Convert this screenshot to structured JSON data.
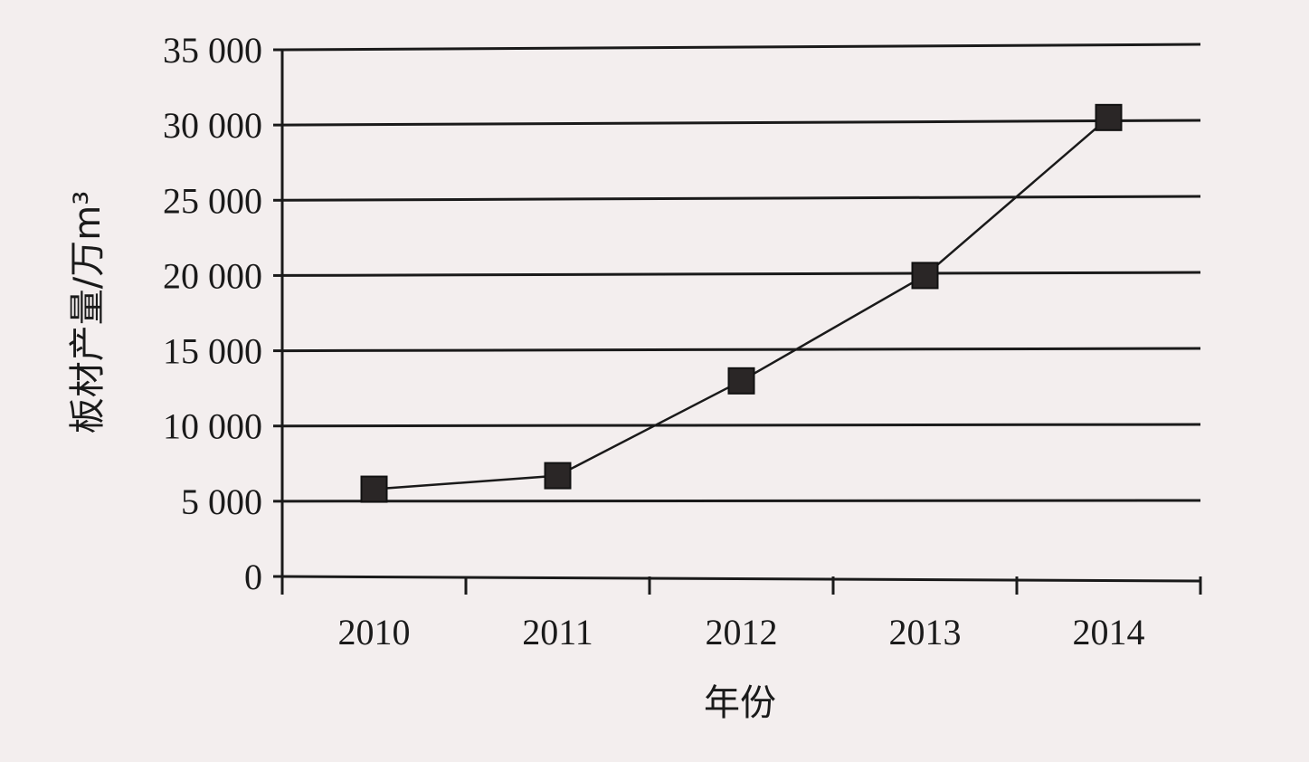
{
  "chart_data": {
    "type": "line",
    "title": "",
    "xlabel": "年份",
    "ylabel": "板材产量/万m³",
    "categories": [
      "2010",
      "2011",
      "2012",
      "2013",
      "2014"
    ],
    "series": [
      {
        "values": [
          5800,
          6700,
          13000,
          20000,
          30500
        ]
      }
    ],
    "ylim": [
      0,
      35000
    ],
    "yticks": [
      0,
      5000,
      10000,
      15000,
      20000,
      25000,
      30000,
      35000
    ],
    "ytick_labels": [
      "0",
      "5 000",
      "10 000",
      "15 000",
      "20 000",
      "25 000",
      "30 000",
      "35 000"
    ],
    "grid": "horizontal",
    "marker": "square",
    "line_color": "#1a1a1a"
  }
}
